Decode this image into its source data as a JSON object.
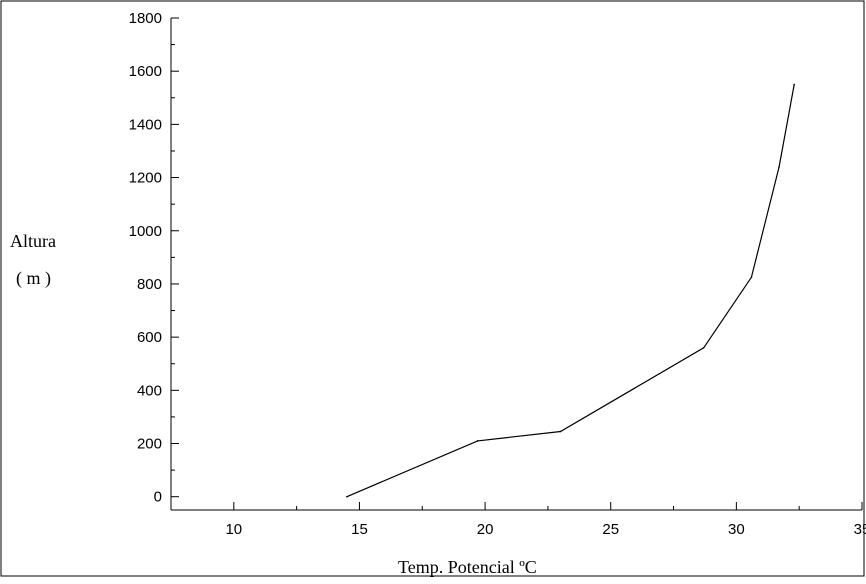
{
  "chart_data": {
    "type": "line",
    "title": "",
    "xlabel": "Temp. Potencial  ºC",
    "ylabel_line1": "Altura",
    "ylabel_line2": "( m )",
    "xlim": [
      7.5,
      35
    ],
    "ylim": [
      -50,
      1800
    ],
    "xticks": [
      10,
      15,
      20,
      25,
      30,
      35
    ],
    "yticks": [
      0,
      200,
      400,
      600,
      800,
      1000,
      1200,
      1400,
      1600,
      1800
    ],
    "grid": false,
    "series": [
      {
        "color": "#000000",
        "x": [
          14.5,
          19.7,
          23.0,
          28.7,
          30.6,
          31.7,
          32.3
        ],
        "y": [
          0,
          210,
          245,
          560,
          825,
          1240,
          1550
        ]
      }
    ]
  }
}
